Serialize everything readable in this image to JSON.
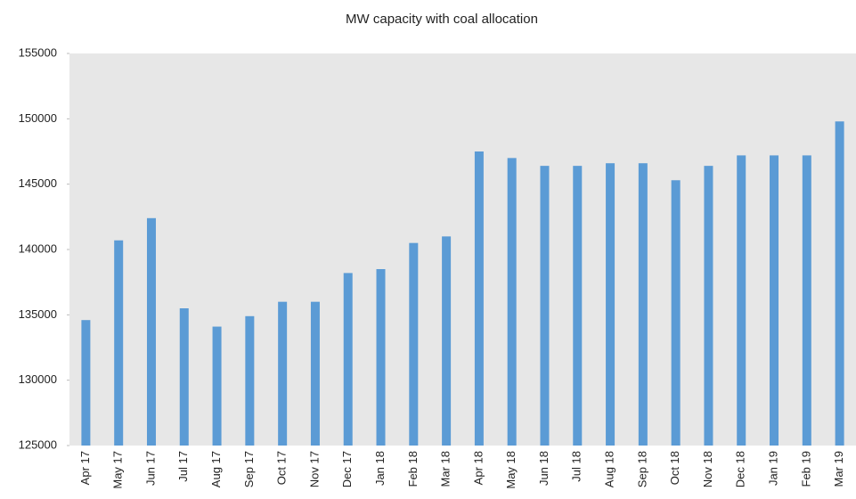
{
  "chart_data": {
    "type": "bar",
    "title": "MW capacity with coal allocation",
    "categories": [
      "Apr 17",
      "May 17",
      "Jun 17",
      "Jul 17",
      "Aug 17",
      "Sep 17",
      "Oct 17",
      "Nov 17",
      "Dec 17",
      "Jan 18",
      "Feb 18",
      "Mar 18",
      "Apr 18",
      "May 18",
      "Jun 18",
      "Jul 18",
      "Aug 18",
      "Sep 18",
      "Oct 18",
      "Nov 18",
      "Dec 18",
      "Jan 19",
      "Feb 19",
      "Mar 19"
    ],
    "values": [
      134600,
      140700,
      142400,
      135500,
      134100,
      134900,
      136000,
      136000,
      138200,
      138500,
      140500,
      141000,
      147500,
      147000,
      146400,
      146400,
      146600,
      146600,
      145300,
      146400,
      147200,
      147200,
      147200,
      149800
    ],
    "color": "#5b9bd5",
    "ylim": [
      125000,
      155000
    ],
    "yticks": [
      125000,
      130000,
      135000,
      140000,
      145000,
      150000,
      155000
    ]
  }
}
